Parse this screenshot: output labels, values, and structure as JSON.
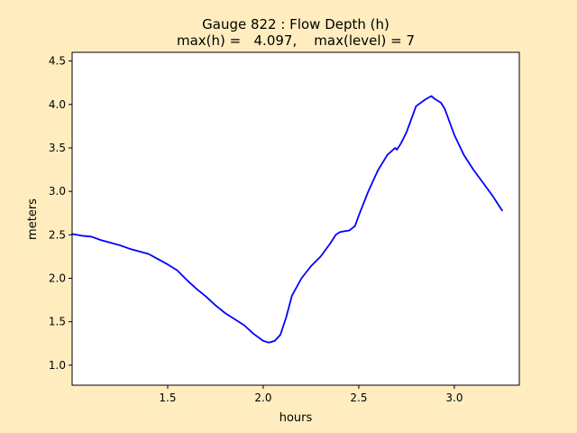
{
  "figure": {
    "background": "#ffedbf",
    "plot_background": "#ffffff"
  },
  "chart_data": {
    "type": "line",
    "title": "Gauge 822 : Flow Depth (h)",
    "subtitle": "max(h) =   4.097,    max(level) = 7",
    "xlabel": "hours",
    "ylabel": "meters",
    "xlim": [
      1.0,
      3.34
    ],
    "ylim": [
      0.77,
      4.6
    ],
    "xticks": [
      1.5,
      2.0,
      2.5,
      3.0
    ],
    "xtick_labels": [
      "1.5",
      "2.0",
      "2.5",
      "3.0"
    ],
    "yticks": [
      1.0,
      1.5,
      2.0,
      2.5,
      3.0,
      3.5,
      4.0,
      4.5
    ],
    "ytick_labels": [
      "1.0",
      "1.5",
      "2.0",
      "2.5",
      "3.0",
      "3.5",
      "4.0",
      "4.5"
    ],
    "grid": false,
    "series": [
      {
        "color": "#0000ff",
        "x": [
          1.0,
          1.05,
          1.1,
          1.15,
          1.2,
          1.25,
          1.3,
          1.35,
          1.4,
          1.45,
          1.5,
          1.55,
          1.6,
          1.65,
          1.7,
          1.75,
          1.8,
          1.85,
          1.9,
          1.95,
          2.0,
          2.03,
          2.06,
          2.09,
          2.12,
          2.15,
          2.2,
          2.25,
          2.3,
          2.35,
          2.38,
          2.4,
          2.42,
          2.45,
          2.48,
          2.5,
          2.55,
          2.6,
          2.65,
          2.69,
          2.7,
          2.72,
          2.75,
          2.8,
          2.85,
          2.88,
          2.9,
          2.93,
          2.95,
          3.0,
          3.05,
          3.1,
          3.15,
          3.2,
          3.25
        ],
        "y": [
          2.51,
          2.49,
          2.48,
          2.44,
          2.41,
          2.38,
          2.34,
          2.31,
          2.28,
          2.22,
          2.16,
          2.09,
          1.98,
          1.88,
          1.79,
          1.69,
          1.6,
          1.53,
          1.46,
          1.36,
          1.28,
          1.26,
          1.28,
          1.35,
          1.55,
          1.8,
          2.0,
          2.14,
          2.25,
          2.4,
          2.5,
          2.53,
          2.54,
          2.55,
          2.6,
          2.72,
          3.0,
          3.24,
          3.42,
          3.5,
          3.48,
          3.55,
          3.68,
          3.98,
          4.06,
          4.097,
          4.06,
          4.02,
          3.95,
          3.65,
          3.42,
          3.25,
          3.1,
          2.95,
          2.78
        ]
      }
    ]
  }
}
